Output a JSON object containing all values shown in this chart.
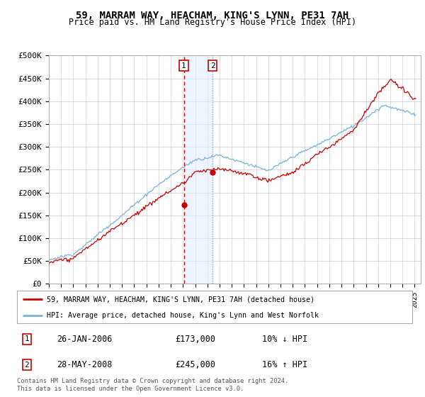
{
  "title": "59, MARRAM WAY, HEACHAM, KING'S LYNN, PE31 7AH",
  "subtitle": "Price paid vs. HM Land Registry's House Price Index (HPI)",
  "legend_line1": "59, MARRAM WAY, HEACHAM, KING'S LYNN, PE31 7AH (detached house)",
  "legend_line2": "HPI: Average price, detached house, King's Lynn and West Norfolk",
  "transaction1_date": "26-JAN-2006",
  "transaction1_price": "£173,000",
  "transaction1_hpi": "10% ↓ HPI",
  "transaction2_date": "28-MAY-2008",
  "transaction2_price": "£245,000",
  "transaction2_hpi": "16% ↑ HPI",
  "footer": "Contains HM Land Registry data © Crown copyright and database right 2024.\nThis data is licensed under the Open Government Licence v3.0.",
  "hpi_color": "#7ab3d8",
  "price_color": "#cc0000",
  "transaction1_x": 2006.07,
  "transaction2_x": 2008.42,
  "transaction1_y": 173000,
  "transaction2_y": 245000,
  "ylim": [
    0,
    500000
  ],
  "xlim_start": 1995,
  "xlim_end": 2025.5,
  "yticks": [
    0,
    50000,
    100000,
    150000,
    200000,
    250000,
    300000,
    350000,
    400000,
    450000,
    500000
  ],
  "ytick_labels": [
    "£0",
    "£50K",
    "£100K",
    "£150K",
    "£200K",
    "£250K",
    "£300K",
    "£350K",
    "£400K",
    "£450K",
    "£500K"
  ]
}
